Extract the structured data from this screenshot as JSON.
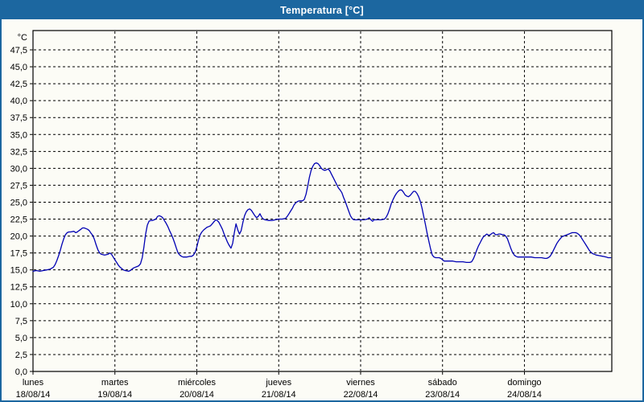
{
  "window": {
    "title": "Temperatura [°C]"
  },
  "colors": {
    "titlebar_bg": "#1c67a0",
    "titlebar_text": "#ffffff",
    "frame": "#1c67a0",
    "background": "#fcfcf6",
    "line": "#0000b3",
    "grid": "#000000",
    "axis": "#000000",
    "text": "#000000"
  },
  "chart_data": {
    "type": "line",
    "title": "Temperatura [°C]",
    "ylabel": "°C",
    "xlabel": "",
    "ylim": [
      0,
      50.35
    ],
    "xlim_hours": [
      0,
      169.6
    ],
    "hours_per_day": 24,
    "grid": "dashed",
    "legend_position": "none",
    "y_ticks": [
      {
        "value": 47.5,
        "label": "47,5"
      },
      {
        "value": 45.0,
        "label": "45,0"
      },
      {
        "value": 42.5,
        "label": "42,5"
      },
      {
        "value": 40.0,
        "label": "40,0"
      },
      {
        "value": 37.5,
        "label": "37,5"
      },
      {
        "value": 35.0,
        "label": "35,0"
      },
      {
        "value": 32.5,
        "label": "32,5"
      },
      {
        "value": 30.0,
        "label": "30,0"
      },
      {
        "value": 27.5,
        "label": "27,5"
      },
      {
        "value": 25.0,
        "label": "25,0"
      },
      {
        "value": 22.5,
        "label": "22,5"
      },
      {
        "value": 20.0,
        "label": "20,0"
      },
      {
        "value": 17.5,
        "label": "17,5"
      },
      {
        "value": 15.0,
        "label": "15,0"
      },
      {
        "value": 12.5,
        "label": "12,5"
      },
      {
        "value": 10.0,
        "label": "10,0"
      },
      {
        "value": 7.5,
        "label": "7,5"
      },
      {
        "value": 5.0,
        "label": "5,0"
      },
      {
        "value": 2.5,
        "label": "2,5"
      },
      {
        "value": 0.0,
        "label": "0,0"
      }
    ],
    "days": [
      {
        "name": "lunes",
        "date": "18/08/14"
      },
      {
        "name": "martes",
        "date": "19/08/14"
      },
      {
        "name": "miércoles",
        "date": "20/08/14"
      },
      {
        "name": "jueves",
        "date": "21/08/14"
      },
      {
        "name": "viernes",
        "date": "22/08/14"
      },
      {
        "name": "sábado",
        "date": "23/08/14"
      },
      {
        "name": "domingo",
        "date": "24/08/14"
      }
    ],
    "series": [
      {
        "name": "Temperatura",
        "color": "#0000b3",
        "points": [
          [
            0,
            14.8
          ],
          [
            1,
            14.9
          ],
          [
            2,
            14.8
          ],
          [
            3,
            14.9
          ],
          [
            4,
            15.0
          ],
          [
            5,
            15.1
          ],
          [
            6,
            15.4
          ],
          [
            6.5,
            15.8
          ],
          [
            7,
            16.4
          ],
          [
            7.5,
            17.1
          ],
          [
            8,
            17.9
          ],
          [
            8.5,
            18.8
          ],
          [
            9,
            19.6
          ],
          [
            9.5,
            20.2
          ],
          [
            10,
            20.5
          ],
          [
            10.5,
            20.6
          ],
          [
            11,
            20.6
          ],
          [
            12,
            20.7
          ],
          [
            12.5,
            20.5
          ],
          [
            13,
            20.6
          ],
          [
            13.5,
            20.8
          ],
          [
            14,
            21.0
          ],
          [
            14.5,
            21.2
          ],
          [
            15,
            21.2
          ],
          [
            15.5,
            21.1
          ],
          [
            16,
            21.0
          ],
          [
            16.5,
            20.8
          ],
          [
            17,
            20.4
          ],
          [
            17.5,
            20.1
          ],
          [
            18,
            19.5
          ],
          [
            18.5,
            18.7
          ],
          [
            19,
            18.0
          ],
          [
            19.5,
            17.5
          ],
          [
            20,
            17.3
          ],
          [
            21,
            17.2
          ],
          [
            22,
            17.3
          ],
          [
            22.5,
            17.5
          ],
          [
            23,
            17.3
          ],
          [
            23.5,
            16.9
          ],
          [
            24,
            16.5
          ],
          [
            24.5,
            16.1
          ],
          [
            25,
            15.7
          ],
          [
            25.5,
            15.4
          ],
          [
            26,
            15.2
          ],
          [
            26.5,
            15.0
          ],
          [
            27,
            14.9
          ],
          [
            28,
            14.8
          ],
          [
            28.5,
            14.9
          ],
          [
            29,
            15.1
          ],
          [
            29.5,
            15.3
          ],
          [
            30,
            15.4
          ],
          [
            30.5,
            15.5
          ],
          [
            31,
            15.6
          ],
          [
            31.5,
            15.9
          ],
          [
            32,
            16.8
          ],
          [
            32.5,
            18.4
          ],
          [
            33,
            20.3
          ],
          [
            33.5,
            21.6
          ],
          [
            34,
            22.2
          ],
          [
            34.5,
            22.3
          ],
          [
            35,
            22.3
          ],
          [
            35.5,
            22.4
          ],
          [
            36,
            22.5
          ],
          [
            36.5,
            22.9
          ],
          [
            37,
            23.0
          ],
          [
            37.5,
            22.9
          ],
          [
            38,
            22.7
          ],
          [
            38.5,
            22.3
          ],
          [
            39,
            21.9
          ],
          [
            39.5,
            21.4
          ],
          [
            40,
            20.8
          ],
          [
            40.5,
            20.3
          ],
          [
            41,
            19.7
          ],
          [
            41.5,
            19.0
          ],
          [
            42,
            18.2
          ],
          [
            42.5,
            17.5
          ],
          [
            43,
            17.2
          ],
          [
            43.5,
            17.0
          ],
          [
            44,
            16.9
          ],
          [
            45,
            16.9
          ],
          [
            46,
            17.0
          ],
          [
            46.5,
            17.0
          ],
          [
            47,
            17.2
          ],
          [
            47.5,
            17.6
          ],
          [
            48,
            18.4
          ],
          [
            48.5,
            19.4
          ],
          [
            49,
            20.2
          ],
          [
            49.5,
            20.6
          ],
          [
            50,
            20.9
          ],
          [
            51,
            21.3
          ],
          [
            51.5,
            21.4
          ],
          [
            52,
            21.5
          ],
          [
            52.5,
            21.8
          ],
          [
            53,
            22.1
          ],
          [
            53.5,
            22.4
          ],
          [
            54,
            22.3
          ],
          [
            54.5,
            22.0
          ],
          [
            55,
            21.5
          ],
          [
            55.5,
            21.0
          ],
          [
            56,
            20.3
          ],
          [
            56.5,
            19.7
          ],
          [
            57,
            19.1
          ],
          [
            57.5,
            18.6
          ],
          [
            58,
            18.2
          ],
          [
            58.5,
            18.9
          ],
          [
            59,
            20.5
          ],
          [
            59.5,
            21.8
          ],
          [
            60,
            20.9
          ],
          [
            60.5,
            20.3
          ],
          [
            61,
            20.8
          ],
          [
            61.5,
            22.0
          ],
          [
            62,
            23.0
          ],
          [
            62.5,
            23.6
          ],
          [
            63,
            23.9
          ],
          [
            63.5,
            24.0
          ],
          [
            64,
            23.8
          ],
          [
            64.5,
            23.4
          ],
          [
            65,
            23.0
          ],
          [
            65.5,
            22.7
          ],
          [
            66,
            22.9
          ],
          [
            66.5,
            23.3
          ],
          [
            67,
            22.8
          ],
          [
            67.5,
            22.5
          ],
          [
            68,
            22.4
          ],
          [
            69,
            22.3
          ],
          [
            70,
            22.3
          ],
          [
            71,
            22.4
          ],
          [
            72,
            22.5
          ],
          [
            73,
            22.5
          ],
          [
            74,
            22.6
          ],
          [
            74.5,
            22.9
          ],
          [
            75,
            23.3
          ],
          [
            75.5,
            23.7
          ],
          [
            76,
            24.1
          ],
          [
            76.5,
            24.6
          ],
          [
            77,
            24.9
          ],
          [
            77.5,
            25.1
          ],
          [
            78,
            25.2
          ],
          [
            78.5,
            25.2
          ],
          [
            79,
            25.2
          ],
          [
            79.5,
            25.4
          ],
          [
            80,
            26.2
          ],
          [
            80.5,
            27.4
          ],
          [
            81,
            28.7
          ],
          [
            81.5,
            29.7
          ],
          [
            82,
            30.3
          ],
          [
            82.5,
            30.7
          ],
          [
            83,
            30.8
          ],
          [
            83.5,
            30.7
          ],
          [
            84,
            30.4
          ],
          [
            84.5,
            30.0
          ],
          [
            85,
            29.8
          ],
          [
            85.5,
            29.7
          ],
          [
            86,
            29.8
          ],
          [
            86.5,
            29.9
          ],
          [
            87,
            29.6
          ],
          [
            87.5,
            29.1
          ],
          [
            88,
            28.6
          ],
          [
            88.5,
            28.1
          ],
          [
            89,
            27.6
          ],
          [
            89.5,
            27.1
          ],
          [
            90,
            26.8
          ],
          [
            90.5,
            26.4
          ],
          [
            91,
            25.7
          ],
          [
            91.5,
            25.1
          ],
          [
            92,
            24.4
          ],
          [
            92.5,
            23.7
          ],
          [
            93,
            23.0
          ],
          [
            93.5,
            22.6
          ],
          [
            94,
            22.4
          ],
          [
            95,
            22.4
          ],
          [
            96,
            22.4
          ],
          [
            97,
            22.4
          ],
          [
            98,
            22.5
          ],
          [
            98.5,
            22.7
          ],
          [
            99,
            22.4
          ],
          [
            99.5,
            22.2
          ],
          [
            100,
            22.4
          ],
          [
            101,
            22.4
          ],
          [
            102,
            22.4
          ],
          [
            103,
            22.5
          ],
          [
            103.5,
            22.8
          ],
          [
            104,
            23.3
          ],
          [
            104.5,
            24.0
          ],
          [
            105,
            24.8
          ],
          [
            105.5,
            25.4
          ],
          [
            106,
            25.9
          ],
          [
            106.5,
            26.3
          ],
          [
            107,
            26.6
          ],
          [
            107.5,
            26.8
          ],
          [
            108,
            26.8
          ],
          [
            108.5,
            26.5
          ],
          [
            109,
            26.1
          ],
          [
            109.5,
            25.9
          ],
          [
            110,
            25.8
          ],
          [
            110.5,
            26.0
          ],
          [
            111,
            26.3
          ],
          [
            111.5,
            26.6
          ],
          [
            112,
            26.6
          ],
          [
            112.5,
            26.3
          ],
          [
            113,
            25.8
          ],
          [
            113.5,
            25.1
          ],
          [
            114,
            24.1
          ],
          [
            114.5,
            22.9
          ],
          [
            115,
            21.7
          ],
          [
            115.5,
            20.4
          ],
          [
            116,
            19.2
          ],
          [
            116.5,
            18.1
          ],
          [
            117,
            17.2
          ],
          [
            117.5,
            16.9
          ],
          [
            118,
            16.8
          ],
          [
            119,
            16.8
          ],
          [
            119.5,
            16.7
          ],
          [
            120,
            16.5
          ],
          [
            120.5,
            16.3
          ],
          [
            121,
            16.3
          ],
          [
            122,
            16.3
          ],
          [
            123,
            16.3
          ],
          [
            124,
            16.2
          ],
          [
            125,
            16.2
          ],
          [
            126,
            16.2
          ],
          [
            127,
            16.1
          ],
          [
            128,
            16.1
          ],
          [
            128.5,
            16.2
          ],
          [
            129,
            16.6
          ],
          [
            129.5,
            17.2
          ],
          [
            130,
            17.9
          ],
          [
            130.5,
            18.5
          ],
          [
            131,
            19.0
          ],
          [
            131.5,
            19.5
          ],
          [
            132,
            19.9
          ],
          [
            132.5,
            20.1
          ],
          [
            133,
            20.3
          ],
          [
            133.5,
            20.1
          ],
          [
            134,
            20.2
          ],
          [
            134.5,
            20.4
          ],
          [
            135,
            20.5
          ],
          [
            135.5,
            20.2
          ],
          [
            136,
            20.2
          ],
          [
            136.5,
            20.3
          ],
          [
            137,
            20.3
          ],
          [
            137.5,
            20.2
          ],
          [
            138,
            20.2
          ],
          [
            138.5,
            20.0
          ],
          [
            139,
            19.6
          ],
          [
            139.5,
            18.9
          ],
          [
            140,
            18.2
          ],
          [
            140.5,
            17.6
          ],
          [
            141,
            17.2
          ],
          [
            141.5,
            17.0
          ],
          [
            142,
            16.9
          ],
          [
            143,
            16.9
          ],
          [
            144,
            16.9
          ],
          [
            145,
            16.9
          ],
          [
            146,
            16.9
          ],
          [
            147,
            16.8
          ],
          [
            148,
            16.8
          ],
          [
            149,
            16.8
          ],
          [
            150,
            16.7
          ],
          [
            150.5,
            16.7
          ],
          [
            151,
            16.8
          ],
          [
            151.5,
            17.0
          ],
          [
            152,
            17.4
          ],
          [
            152.5,
            17.9
          ],
          [
            153,
            18.4
          ],
          [
            153.5,
            18.9
          ],
          [
            154,
            19.3
          ],
          [
            154.5,
            19.6
          ],
          [
            155,
            19.9
          ],
          [
            155.5,
            20.0
          ],
          [
            156,
            20.1
          ],
          [
            156.5,
            20.2
          ],
          [
            157,
            20.3
          ],
          [
            157.5,
            20.4
          ],
          [
            158,
            20.5
          ],
          [
            158.5,
            20.5
          ],
          [
            159,
            20.5
          ],
          [
            159.5,
            20.4
          ],
          [
            160,
            20.2
          ],
          [
            160.5,
            19.9
          ],
          [
            161,
            19.5
          ],
          [
            161.5,
            19.1
          ],
          [
            162,
            18.7
          ],
          [
            162.5,
            18.3
          ],
          [
            163,
            17.9
          ],
          [
            163.5,
            17.6
          ],
          [
            164,
            17.4
          ],
          [
            164.5,
            17.3
          ],
          [
            165,
            17.2
          ],
          [
            166,
            17.1
          ],
          [
            167,
            17.0
          ],
          [
            168,
            16.9
          ],
          [
            168.5,
            16.8
          ],
          [
            169.3,
            16.8
          ]
        ]
      }
    ]
  }
}
